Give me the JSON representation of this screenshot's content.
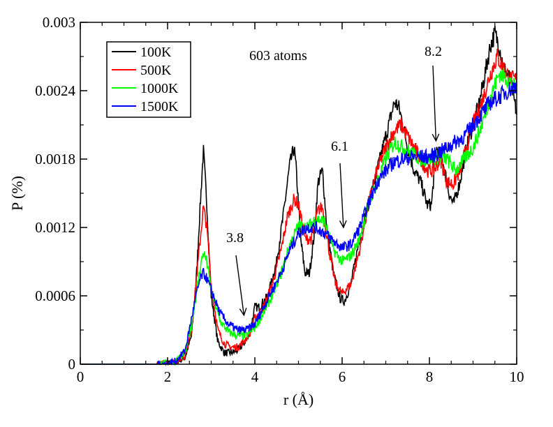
{
  "chart_data": {
    "type": "line",
    "xlabel": "r (Å)",
    "ylabel": "P (%)",
    "xlim": [
      0,
      10
    ],
    "ylim": [
      0,
      0.003
    ],
    "xticks": [
      0,
      2,
      4,
      6,
      8,
      10
    ],
    "yticks": [
      0,
      0.0006,
      0.0012,
      0.0018,
      0.0024,
      0.003
    ],
    "xtick_labels": [
      "0",
      "2",
      "4",
      "6",
      "8",
      "10"
    ],
    "ytick_labels": [
      "0",
      "0.0006",
      "0.0012",
      "0.0018",
      "0.0024",
      "0.003"
    ],
    "grid": false,
    "legend_position": "top-left",
    "title": "",
    "annotation_text": "603 atoms",
    "arrows": [
      {
        "label": "3.8",
        "x": 3.75,
        "y": 0.00043
      },
      {
        "label": "6.1",
        "x": 6.03,
        "y": 0.0012
      },
      {
        "label": "8.2",
        "x": 8.15,
        "y": 0.00196
      }
    ],
    "series": [
      {
        "name": "100K",
        "color": "#000000",
        "x": [
          0,
          1.7,
          2.0,
          2.2,
          2.4,
          2.55,
          2.65,
          2.75,
          2.82,
          2.9,
          3.0,
          3.15,
          3.3,
          3.45,
          3.6,
          3.75,
          3.9,
          4.0,
          4.1,
          4.3,
          4.5,
          4.65,
          4.8,
          4.9,
          4.95,
          5.05,
          5.15,
          5.25,
          5.35,
          5.45,
          5.55,
          5.65,
          5.8,
          5.95,
          6.05,
          6.2,
          6.4,
          6.6,
          6.8,
          7.0,
          7.1,
          7.2,
          7.3,
          7.4,
          7.5,
          7.65,
          7.8,
          7.95,
          8.05,
          8.15,
          8.3,
          8.45,
          8.55,
          8.7,
          8.85,
          9.0,
          9.15,
          9.3,
          9.4,
          9.5,
          9.6,
          9.7,
          9.85,
          10.0
        ],
        "y": [
          0,
          0,
          5e-06,
          2e-05,
          6e-05,
          0.00025,
          0.0007,
          0.0014,
          0.00188,
          0.0014,
          0.0006,
          0.0002,
          0.0001,
          0.0001,
          0.00012,
          0.00018,
          0.0003,
          0.0005,
          0.0005,
          0.0006,
          0.0009,
          0.0013,
          0.00175,
          0.0019,
          0.0017,
          0.0011,
          0.0008,
          0.0008,
          0.0011,
          0.0016,
          0.0017,
          0.0012,
          0.0008,
          0.00058,
          0.00055,
          0.0007,
          0.0011,
          0.0014,
          0.0017,
          0.002,
          0.00215,
          0.0023,
          0.00225,
          0.0021,
          0.0019,
          0.0017,
          0.0016,
          0.0014,
          0.0014,
          0.0019,
          0.0018,
          0.0015,
          0.0014,
          0.0016,
          0.0019,
          0.0021,
          0.0023,
          0.0026,
          0.0028,
          0.0029,
          0.0028,
          0.0026,
          0.0025,
          0.0022
        ]
      },
      {
        "name": "500K",
        "color": "#ff0000",
        "x": [
          0,
          1.7,
          2.0,
          2.2,
          2.4,
          2.55,
          2.65,
          2.75,
          2.82,
          2.9,
          3.0,
          3.15,
          3.3,
          3.45,
          3.6,
          3.75,
          3.9,
          4.0,
          4.2,
          4.4,
          4.6,
          4.75,
          4.9,
          5.0,
          5.15,
          5.3,
          5.45,
          5.55,
          5.7,
          5.85,
          6.0,
          6.2,
          6.4,
          6.6,
          6.8,
          7.0,
          7.2,
          7.35,
          7.5,
          7.65,
          7.8,
          7.95,
          8.1,
          8.25,
          8.4,
          8.55,
          8.7,
          8.85,
          9.0,
          9.2,
          9.4,
          9.55,
          9.7,
          9.85,
          10.0
        ],
        "y": [
          0,
          0,
          5e-06,
          2e-05,
          8e-05,
          0.0003,
          0.0007,
          0.0011,
          0.00138,
          0.0012,
          0.0007,
          0.0003,
          0.00018,
          0.00015,
          0.00015,
          0.0002,
          0.00028,
          0.0004,
          0.0005,
          0.0007,
          0.001,
          0.0013,
          0.00145,
          0.0014,
          0.0011,
          0.0011,
          0.00135,
          0.00138,
          0.001,
          0.0007,
          0.00062,
          0.0007,
          0.001,
          0.0014,
          0.0017,
          0.0019,
          0.00205,
          0.0021,
          0.002,
          0.0019,
          0.0018,
          0.0017,
          0.0017,
          0.0018,
          0.0016,
          0.00158,
          0.0017,
          0.0019,
          0.0021,
          0.0023,
          0.00255,
          0.0027,
          0.0026,
          0.0025,
          0.0025
        ]
      },
      {
        "name": "1000K",
        "color": "#00ff00",
        "x": [
          0,
          1.7,
          2.0,
          2.2,
          2.4,
          2.55,
          2.65,
          2.75,
          2.82,
          2.9,
          3.0,
          3.2,
          3.4,
          3.6,
          3.8,
          4.0,
          4.2,
          4.4,
          4.6,
          4.8,
          5.0,
          5.2,
          5.4,
          5.6,
          5.8,
          6.0,
          6.2,
          6.4,
          6.6,
          6.8,
          7.0,
          7.2,
          7.4,
          7.6,
          7.8,
          8.0,
          8.2,
          8.4,
          8.6,
          8.8,
          9.0,
          9.2,
          9.4,
          9.6,
          9.8,
          10.0
        ],
        "y": [
          0,
          0,
          5e-06,
          3e-05,
          0.0001,
          0.00035,
          0.0006,
          0.00085,
          0.00098,
          0.0009,
          0.00065,
          0.00038,
          0.00028,
          0.00025,
          0.00025,
          0.00032,
          0.00045,
          0.0006,
          0.0008,
          0.00105,
          0.00122,
          0.0012,
          0.00128,
          0.00125,
          0.001,
          0.0009,
          0.00095,
          0.0011,
          0.0014,
          0.0016,
          0.0018,
          0.00195,
          0.0019,
          0.00185,
          0.0018,
          0.0018,
          0.00182,
          0.0018,
          0.0017,
          0.0018,
          0.0019,
          0.0021,
          0.00235,
          0.00255,
          0.0025,
          0.0024
        ]
      },
      {
        "name": "1500K",
        "color": "#0000ff",
        "x": [
          0,
          1.7,
          2.0,
          2.2,
          2.4,
          2.55,
          2.65,
          2.75,
          2.82,
          2.9,
          3.0,
          3.2,
          3.4,
          3.6,
          3.8,
          4.0,
          4.2,
          4.4,
          4.6,
          4.8,
          5.0,
          5.2,
          5.4,
          5.6,
          5.8,
          6.0,
          6.2,
          6.4,
          6.6,
          6.8,
          7.0,
          7.2,
          7.4,
          7.6,
          7.8,
          8.0,
          8.2,
          8.4,
          8.6,
          8.8,
          9.0,
          9.2,
          9.4,
          9.6,
          9.8,
          10.0
        ],
        "y": [
          0,
          0,
          5e-06,
          3e-05,
          0.00012,
          0.0004,
          0.0006,
          0.00075,
          0.0008,
          0.00075,
          0.00065,
          0.00045,
          0.00035,
          0.0003,
          0.0003,
          0.00035,
          0.0005,
          0.00065,
          0.0008,
          0.001,
          0.00115,
          0.0012,
          0.0012,
          0.00115,
          0.00108,
          0.00102,
          0.00105,
          0.0012,
          0.0014,
          0.0016,
          0.0017,
          0.00178,
          0.0018,
          0.00182,
          0.00182,
          0.00182,
          0.00185,
          0.0019,
          0.00195,
          0.002,
          0.0021,
          0.0022,
          0.0023,
          0.00235,
          0.0024,
          0.00245
        ]
      }
    ]
  }
}
